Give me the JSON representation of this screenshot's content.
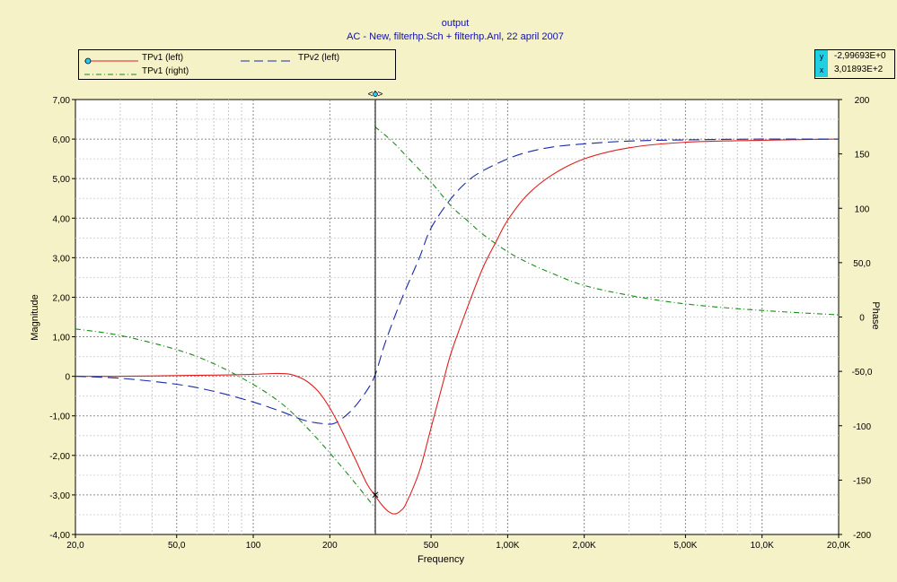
{
  "header": {
    "title": "output",
    "subtitle": "AC - New,    filterhp.Sch + filterhp.Anl,   22 april 2007"
  },
  "readout": {
    "y_tag": "y",
    "y_value": "-2,99693E+0",
    "x_tag": "x",
    "x_value": "3,01893E+2"
  },
  "cursor": {
    "handle_label": "<◊>",
    "x": 301.893
  },
  "chart_data": {
    "type": "line",
    "xlabel": "Frequency",
    "ylabel_left": "Magnitude",
    "ylabel_right": "Phase",
    "xscale": "log",
    "xlim": [
      20,
      20000
    ],
    "ylim_left": [
      -4,
      7
    ],
    "ylim_right": [
      -200,
      200
    ],
    "grid": true,
    "legend_position": "top-left",
    "x_ticks": [
      {
        "value": 20,
        "label": "20,0"
      },
      {
        "value": 50,
        "label": "50,0"
      },
      {
        "value": 100,
        "label": "100"
      },
      {
        "value": 200,
        "label": "200"
      },
      {
        "value": 500,
        "label": "500"
      },
      {
        "value": 1000,
        "label": "1,00K"
      },
      {
        "value": 2000,
        "label": "2,00K"
      },
      {
        "value": 5000,
        "label": "5,00K"
      },
      {
        "value": 10000,
        "label": "10,0K"
      },
      {
        "value": 20000,
        "label": "20,0K"
      }
    ],
    "y_ticks_left": [
      {
        "value": 7,
        "label": "7,00"
      },
      {
        "value": 6,
        "label": "6,00"
      },
      {
        "value": 5,
        "label": "5,00"
      },
      {
        "value": 4,
        "label": "4,00"
      },
      {
        "value": 3,
        "label": "3,00"
      },
      {
        "value": 2,
        "label": "2,00"
      },
      {
        "value": 1,
        "label": "1,00"
      },
      {
        "value": 0,
        "label": "0"
      },
      {
        "value": -1,
        "label": "-1,00"
      },
      {
        "value": -2,
        "label": "-2,00"
      },
      {
        "value": -3,
        "label": "-3,00"
      },
      {
        "value": -4,
        "label": "-4,00"
      }
    ],
    "y_ticks_right": [
      {
        "value": 200,
        "label": "200"
      },
      {
        "value": 150,
        "label": "150"
      },
      {
        "value": 100,
        "label": "100"
      },
      {
        "value": 50,
        "label": "50,0"
      },
      {
        "value": 0,
        "label": "0"
      },
      {
        "value": -50,
        "label": "-50,0"
      },
      {
        "value": -100,
        "label": "-100"
      },
      {
        "value": -150,
        "label": "-150"
      },
      {
        "value": -200,
        "label": "-200"
      }
    ],
    "series": [
      {
        "name": "TPv1 (left)",
        "axis": "left",
        "color": "#e02020",
        "dash": "solid",
        "x": [
          20,
          30,
          50,
          70,
          100,
          120,
          140,
          160,
          180,
          200,
          220,
          250,
          280,
          300,
          320,
          340,
          360,
          380,
          400,
          450,
          500,
          550,
          600,
          700,
          800,
          900,
          1000,
          1200,
          1500,
          2000,
          3000,
          5000,
          10000,
          20000
        ],
        "y": [
          0,
          0,
          0.02,
          0.03,
          0.05,
          0.07,
          0.05,
          -0.1,
          -0.38,
          -0.8,
          -1.3,
          -2.05,
          -2.72,
          -3.0,
          -3.25,
          -3.42,
          -3.48,
          -3.4,
          -3.2,
          -2.4,
          -1.3,
          -0.3,
          0.6,
          1.8,
          2.75,
          3.4,
          3.95,
          4.6,
          5.1,
          5.5,
          5.78,
          5.92,
          5.97,
          6.0
        ]
      },
      {
        "name": "TPv2 (left)",
        "axis": "left",
        "color": "#1a2aa8",
        "dash": "long-dash",
        "x": [
          20,
          30,
          50,
          70,
          100,
          130,
          160,
          190,
          210,
          240,
          270,
          300,
          330,
          380,
          450,
          500,
          600,
          700,
          800,
          1000,
          1200,
          1500,
          2000,
          3000,
          5000,
          10000,
          20000
        ],
        "y": [
          0,
          -0.05,
          -0.2,
          -0.38,
          -0.65,
          -0.9,
          -1.12,
          -1.2,
          -1.18,
          -0.9,
          -0.5,
          0,
          0.85,
          1.9,
          3.0,
          3.75,
          4.5,
          4.95,
          5.2,
          5.5,
          5.67,
          5.8,
          5.88,
          5.95,
          5.98,
          6.0,
          6.0
        ]
      },
      {
        "name": "TPv1 (right)",
        "axis": "right",
        "color": "#1a8a1a",
        "dash": "dash-dot",
        "x": [
          20,
          30,
          50,
          70,
          100,
          130,
          160,
          200,
          250,
          300,
          301,
          350,
          400,
          500,
          600,
          700,
          800,
          1000,
          1200,
          1500,
          2000,
          3000,
          5000,
          10000,
          20000
        ],
        "y": [
          -11,
          -17,
          -30,
          -43,
          -62,
          -80,
          -100,
          -125,
          -152,
          -175,
          175,
          162,
          148,
          124,
          102,
          88,
          76,
          60,
          50,
          40,
          29,
          20,
          12,
          6,
          2
        ]
      }
    ]
  }
}
